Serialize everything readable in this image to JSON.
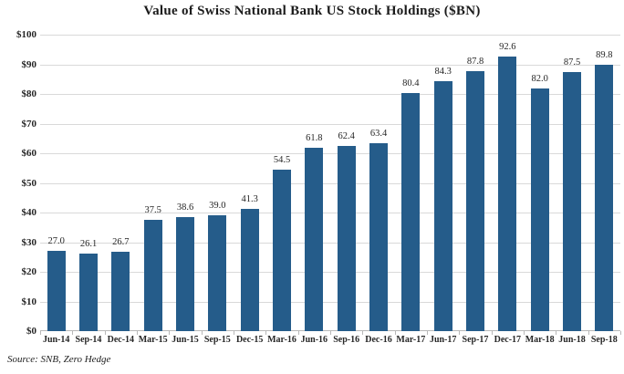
{
  "chart": {
    "title": "Value of Swiss National Bank US Stock Holdings ($BN)",
    "source": "Source: SNB, Zero Hedge"
  },
  "chart_data": {
    "type": "bar",
    "title": "Value of Swiss National Bank US Stock Holdings ($BN)",
    "categories": [
      "Jun-14",
      "Sep-14",
      "Dec-14",
      "Mar-15",
      "Jun-15",
      "Sep-15",
      "Dec-15",
      "Mar-16",
      "Jun-16",
      "Sep-16",
      "Dec-16",
      "Mar-17",
      "Jun-17",
      "Sep-17",
      "Dec-17",
      "Mar-18",
      "Jun-18",
      "Sep-18"
    ],
    "values": [
      27.0,
      26.1,
      26.7,
      37.5,
      38.6,
      39.0,
      41.3,
      54.5,
      61.8,
      62.4,
      63.4,
      80.4,
      84.3,
      87.8,
      92.6,
      82.0,
      87.5,
      89.8
    ],
    "value_label_decimals": 1,
    "xlabel": "",
    "ylabel": "",
    "ylim": [
      0,
      100
    ],
    "ytick_step": 10,
    "ytick_labels": [
      "$0",
      "$10",
      "$20",
      "$30",
      "$40",
      "$50",
      "$60",
      "$70",
      "$80",
      "$90",
      "$100"
    ],
    "grid": true,
    "legend": false,
    "bar_color": "#255c8a",
    "gridline_color": "#d9d9d9",
    "axis_color": "#b9b9b9",
    "text_color": "#262626",
    "source": "Source: SNB, Zero Hedge"
  }
}
